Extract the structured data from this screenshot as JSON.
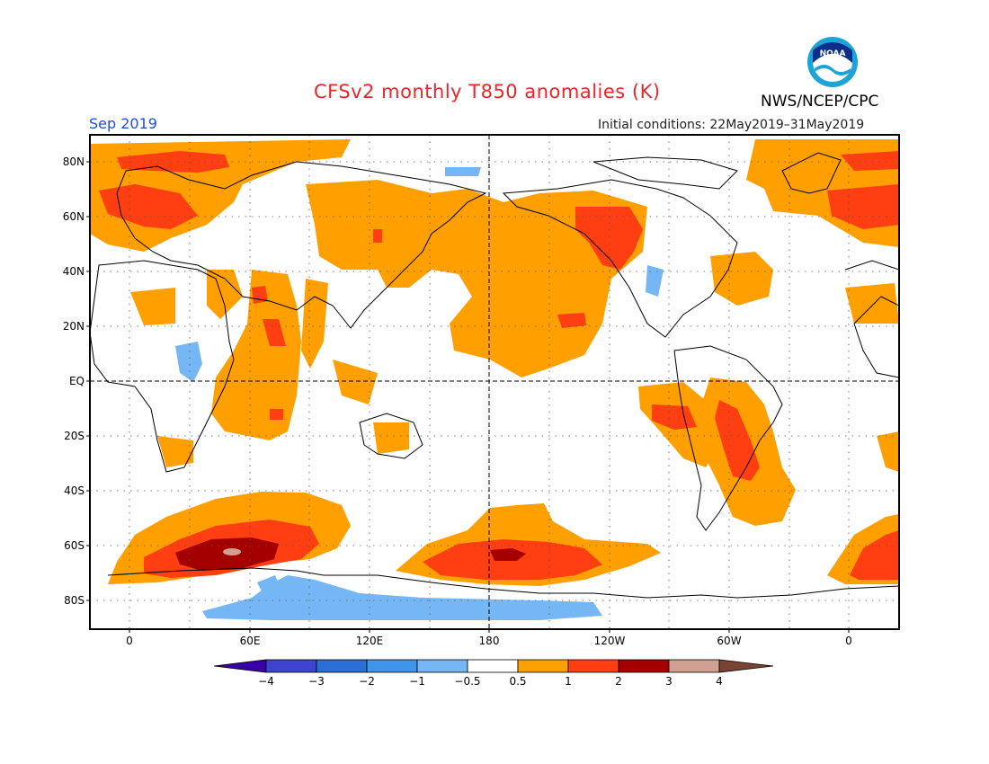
{
  "header": {
    "title": "CFSv2 monthly T850 anomalies (K)",
    "agency": "NWS/NCEP/CPC",
    "month": "Sep 2019",
    "initial_conditions": "Initial conditions: 22May2019–31May2019"
  },
  "logo": {
    "icon": "noaa-logo-icon",
    "text": "NOAA"
  },
  "axes": {
    "lat_labels": [
      "80N",
      "60N",
      "40N",
      "20N",
      "EQ",
      "20S",
      "40S",
      "60S",
      "80S"
    ],
    "lon_labels": [
      "0",
      "60E",
      "120E",
      "180",
      "120W",
      "60W",
      "0"
    ]
  },
  "colorbar": {
    "labels": [
      "−4",
      "−3",
      "−2",
      "−1",
      "−0.5",
      "0.5",
      "1",
      "2",
      "3",
      "4"
    ],
    "colors": [
      "#3a00a8",
      "#3d45d0",
      "#2a6fd6",
      "#3f95ec",
      "#75b6f5",
      "#ffffff",
      "#ff9f00",
      "#ff3e12",
      "#a50000",
      "#d2a090",
      "#7a4433"
    ]
  }
}
